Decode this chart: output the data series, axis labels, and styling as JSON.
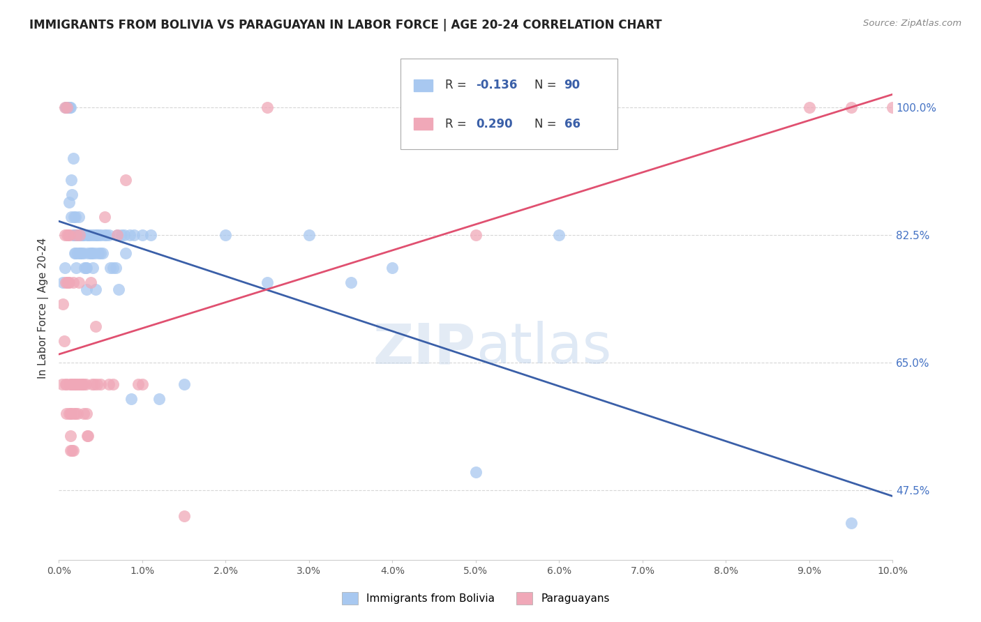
{
  "title": "IMMIGRANTS FROM BOLIVIA VS PARAGUAYAN IN LABOR FORCE | AGE 20-24 CORRELATION CHART",
  "source": "Source: ZipAtlas.com",
  "ylabel": "In Labor Force | Age 20-24",
  "yticks": [
    47.5,
    65.0,
    82.5,
    100.0
  ],
  "xticks": [
    0.0,
    1.0,
    2.0,
    3.0,
    4.0,
    5.0,
    6.0,
    7.0,
    8.0,
    9.0,
    10.0
  ],
  "xlim": [
    0.0,
    10.0
  ],
  "ylim": [
    38.0,
    107.0
  ],
  "bolivia_color": "#a8c8f0",
  "paraguay_color": "#f0a8b8",
  "bolivia_line_color": "#3a5fa8",
  "paraguay_line_color": "#e05070",
  "bolivia_R": "-0.136",
  "bolivia_N": "90",
  "paraguay_R": "0.290",
  "paraguay_N": "66",
  "legend_label_bolivia": "Immigrants from Bolivia",
  "legend_label_paraguay": "Paraguayans",
  "background_color": "#ffffff",
  "grid_color": "#cccccc",
  "title_color": "#222222",
  "ytick_color": "#4472c4",
  "source_color": "#888888",
  "watermark_color": "#c8dff0",
  "bolivia_scatter": [
    [
      0.05,
      76.0
    ],
    [
      0.07,
      78.0
    ],
    [
      0.08,
      100.0
    ],
    [
      0.09,
      100.0
    ],
    [
      0.1,
      100.0
    ],
    [
      0.1,
      100.0
    ],
    [
      0.11,
      100.0
    ],
    [
      0.11,
      100.0
    ],
    [
      0.12,
      87.0
    ],
    [
      0.13,
      100.0
    ],
    [
      0.14,
      100.0
    ],
    [
      0.15,
      90.0
    ],
    [
      0.15,
      85.0
    ],
    [
      0.16,
      88.0
    ],
    [
      0.17,
      93.0
    ],
    [
      0.17,
      82.5
    ],
    [
      0.18,
      82.5
    ],
    [
      0.18,
      85.0
    ],
    [
      0.19,
      82.5
    ],
    [
      0.19,
      80.0
    ],
    [
      0.2,
      85.0
    ],
    [
      0.2,
      80.0
    ],
    [
      0.21,
      78.0
    ],
    [
      0.21,
      82.5
    ],
    [
      0.22,
      82.5
    ],
    [
      0.22,
      80.0
    ],
    [
      0.23,
      82.5
    ],
    [
      0.23,
      82.5
    ],
    [
      0.24,
      82.5
    ],
    [
      0.24,
      85.0
    ],
    [
      0.25,
      82.5
    ],
    [
      0.25,
      80.0
    ],
    [
      0.26,
      82.5
    ],
    [
      0.26,
      80.0
    ],
    [
      0.27,
      82.5
    ],
    [
      0.27,
      80.0
    ],
    [
      0.28,
      82.5
    ],
    [
      0.29,
      82.5
    ],
    [
      0.3,
      82.5
    ],
    [
      0.3,
      80.0
    ],
    [
      0.31,
      78.0
    ],
    [
      0.32,
      78.0
    ],
    [
      0.33,
      78.0
    ],
    [
      0.33,
      75.0
    ],
    [
      0.34,
      82.5
    ],
    [
      0.35,
      82.5
    ],
    [
      0.35,
      80.0
    ],
    [
      0.36,
      82.5
    ],
    [
      0.37,
      82.5
    ],
    [
      0.38,
      80.0
    ],
    [
      0.39,
      80.0
    ],
    [
      0.4,
      82.5
    ],
    [
      0.4,
      80.0
    ],
    [
      0.41,
      78.0
    ],
    [
      0.42,
      82.5
    ],
    [
      0.43,
      80.0
    ],
    [
      0.44,
      75.0
    ],
    [
      0.45,
      82.5
    ],
    [
      0.46,
      82.5
    ],
    [
      0.47,
      80.0
    ],
    [
      0.48,
      82.5
    ],
    [
      0.5,
      80.0
    ],
    [
      0.51,
      82.5
    ],
    [
      0.52,
      80.0
    ],
    [
      0.55,
      82.5
    ],
    [
      0.57,
      82.5
    ],
    [
      0.6,
      82.5
    ],
    [
      0.62,
      78.0
    ],
    [
      0.65,
      78.0
    ],
    [
      0.68,
      78.0
    ],
    [
      0.7,
      82.5
    ],
    [
      0.72,
      75.0
    ],
    [
      0.75,
      82.5
    ],
    [
      0.78,
      82.5
    ],
    [
      0.8,
      80.0
    ],
    [
      0.85,
      82.5
    ],
    [
      0.87,
      60.0
    ],
    [
      0.9,
      82.5
    ],
    [
      1.0,
      82.5
    ],
    [
      1.1,
      82.5
    ],
    [
      1.2,
      60.0
    ],
    [
      1.5,
      62.0
    ],
    [
      2.0,
      82.5
    ],
    [
      2.5,
      76.0
    ],
    [
      3.0,
      82.5
    ],
    [
      3.5,
      76.0
    ],
    [
      4.0,
      78.0
    ],
    [
      5.0,
      50.0
    ],
    [
      6.0,
      82.5
    ],
    [
      9.5,
      43.0
    ]
  ],
  "paraguay_scatter": [
    [
      0.04,
      62.0
    ],
    [
      0.05,
      73.0
    ],
    [
      0.06,
      68.0
    ],
    [
      0.07,
      82.5
    ],
    [
      0.07,
      100.0
    ],
    [
      0.08,
      62.0
    ],
    [
      0.08,
      76.0
    ],
    [
      0.09,
      62.0
    ],
    [
      0.09,
      58.0
    ],
    [
      0.1,
      100.0
    ],
    [
      0.1,
      82.5
    ],
    [
      0.1,
      76.0
    ],
    [
      0.11,
      76.0
    ],
    [
      0.11,
      82.5
    ],
    [
      0.12,
      58.0
    ],
    [
      0.12,
      76.0
    ],
    [
      0.13,
      62.0
    ],
    [
      0.13,
      82.5
    ],
    [
      0.14,
      55.0
    ],
    [
      0.14,
      58.0
    ],
    [
      0.14,
      53.0
    ],
    [
      0.15,
      58.0
    ],
    [
      0.15,
      62.0
    ],
    [
      0.16,
      62.0
    ],
    [
      0.16,
      53.0
    ],
    [
      0.17,
      76.0
    ],
    [
      0.17,
      53.0
    ],
    [
      0.18,
      62.0
    ],
    [
      0.18,
      58.0
    ],
    [
      0.19,
      62.0
    ],
    [
      0.2,
      62.0
    ],
    [
      0.2,
      58.0
    ],
    [
      0.21,
      82.5
    ],
    [
      0.22,
      62.0
    ],
    [
      0.22,
      58.0
    ],
    [
      0.23,
      62.0
    ],
    [
      0.24,
      76.0
    ],
    [
      0.25,
      82.5
    ],
    [
      0.26,
      62.0
    ],
    [
      0.27,
      62.0
    ],
    [
      0.28,
      62.0
    ],
    [
      0.3,
      62.0
    ],
    [
      0.3,
      58.0
    ],
    [
      0.32,
      62.0
    ],
    [
      0.33,
      58.0
    ],
    [
      0.34,
      55.0
    ],
    [
      0.35,
      55.0
    ],
    [
      0.38,
      76.0
    ],
    [
      0.4,
      62.0
    ],
    [
      0.42,
      62.0
    ],
    [
      0.44,
      70.0
    ],
    [
      0.46,
      62.0
    ],
    [
      0.5,
      62.0
    ],
    [
      0.55,
      85.0
    ],
    [
      0.6,
      62.0
    ],
    [
      0.65,
      62.0
    ],
    [
      0.7,
      82.5
    ],
    [
      0.8,
      90.0
    ],
    [
      0.95,
      62.0
    ],
    [
      1.0,
      62.0
    ],
    [
      1.5,
      44.0
    ],
    [
      2.5,
      100.0
    ],
    [
      5.0,
      82.5
    ],
    [
      9.0,
      100.0
    ],
    [
      9.5,
      100.0
    ],
    [
      10.0,
      100.0
    ]
  ]
}
